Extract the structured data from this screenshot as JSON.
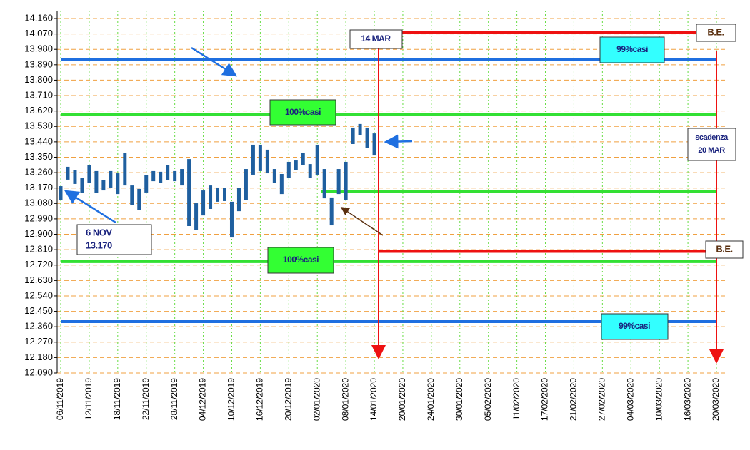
{
  "chart_data": {
    "type": "range-bar",
    "categories": [
      "06/11/2019",
      null,
      null,
      null,
      "12/11/2019",
      null,
      null,
      null,
      "18/11/2019",
      null,
      null,
      null,
      "22/11/2019",
      null,
      null,
      null,
      "28/11/2019",
      null,
      null,
      null,
      "04/12/2019",
      null,
      null,
      null,
      "10/12/2019",
      null,
      null,
      null,
      "16/12/2019",
      null,
      null,
      null,
      "20/12/2019",
      null,
      null,
      null,
      "02/01/2020",
      null,
      null,
      null,
      "08/01/2020",
      null,
      null,
      null,
      "14/01/2020",
      null,
      null,
      null,
      "20/01/2020",
      null,
      null,
      null,
      "24/01/2020",
      null,
      null,
      null,
      "30/01/2020",
      null,
      null,
      null,
      "05/02/2020",
      null,
      null,
      null,
      "11/02/2020",
      null,
      null,
      null,
      "17/02/2020",
      null,
      null,
      null,
      "21/02/2020",
      null,
      null,
      null,
      "27/02/2020",
      null,
      null,
      null,
      "04/03/2020",
      null,
      null,
      null,
      "10/03/2020",
      null,
      null,
      null,
      "16/03/2020",
      null,
      null,
      null,
      "20/03/2020"
    ],
    "high": [
      13.181,
      13.294,
      13.277,
      13.227,
      13.306,
      13.269,
      13.215,
      13.269,
      13.256,
      13.373,
      13.185,
      13.165,
      13.244,
      13.269,
      13.265,
      13.306,
      13.269,
      13.281,
      13.339,
      13.081,
      13.156,
      13.185,
      13.173,
      13.169,
      13.09,
      13.169,
      13.281,
      13.423,
      13.423,
      13.394,
      13.281,
      13.252,
      13.323,
      13.331,
      13.377,
      13.31,
      13.423,
      13.281,
      13.115,
      13.281,
      13.323,
      13.523,
      13.544,
      13.523,
      13.489,
      null,
      null,
      null,
      null,
      null,
      null,
      null,
      null,
      null,
      null,
      null,
      null,
      null,
      null,
      null,
      null,
      null,
      null,
      null,
      null,
      null,
      null,
      null,
      null,
      null,
      null,
      null,
      null,
      null,
      null,
      null,
      null,
      null,
      null,
      null,
      null,
      null,
      null,
      null,
      null,
      null,
      null,
      null,
      null,
      null,
      null,
      null,
      null
    ],
    "low": [
      13.102,
      13.219,
      13.194,
      13.14,
      13.202,
      13.14,
      13.156,
      13.173,
      13.135,
      13.185,
      13.069,
      13.04,
      13.144,
      13.21,
      13.198,
      13.215,
      13.21,
      13.185,
      12.948,
      12.923,
      13.01,
      13.048,
      13.09,
      13.094,
      12.881,
      13.035,
      13.102,
      13.248,
      13.269,
      13.256,
      13.202,
      13.135,
      13.227,
      13.273,
      13.302,
      13.231,
      13.248,
      13.11,
      12.952,
      13.135,
      13.098,
      13.427,
      13.481,
      13.402,
      13.36,
      null,
      null,
      null,
      null,
      null,
      null,
      null,
      null,
      null,
      null,
      null,
      null,
      null,
      null,
      null,
      null,
      null,
      null,
      null,
      null,
      null,
      null,
      null,
      null,
      null,
      null,
      null,
      null,
      null,
      null,
      null,
      null,
      null,
      null,
      null,
      null,
      null,
      null,
      null,
      null,
      null,
      null,
      null,
      null,
      null,
      null,
      null,
      null
    ],
    "color": "#1f5f9f",
    "ylim": [
      12.09,
      14.16
    ],
    "yticks": [
      {
        "value": 12.09,
        "label": "12.090"
      },
      {
        "value": 12.18,
        "label": "12.180"
      },
      {
        "value": 12.27,
        "label": "12.270"
      },
      {
        "value": 12.36,
        "label": "12.360"
      },
      {
        "value": 12.45,
        "label": "12.450"
      },
      {
        "value": 12.54,
        "label": "12.540"
      },
      {
        "value": 12.63,
        "label": "12.630"
      },
      {
        "value": 12.72,
        "label": "12.720"
      },
      {
        "value": 12.81,
        "label": "12.810"
      },
      {
        "value": 12.9,
        "label": "12.900"
      },
      {
        "value": 12.99,
        "label": "12.990"
      },
      {
        "value": 13.08,
        "label": "13.080"
      },
      {
        "value": 13.17,
        "label": "13.170"
      },
      {
        "value": 13.26,
        "label": "13.260"
      },
      {
        "value": 13.35,
        "label": "13.350"
      },
      {
        "value": 13.44,
        "label": "13.440"
      },
      {
        "value": 13.53,
        "label": "13.530"
      },
      {
        "value": 13.62,
        "label": "13.620"
      },
      {
        "value": 13.71,
        "label": "13.710"
      },
      {
        "value": 13.8,
        "label": "13.800"
      },
      {
        "value": 13.89,
        "label": "13.890"
      },
      {
        "value": 13.98,
        "label": "13.980"
      },
      {
        "value": 14.07,
        "label": "14.070"
      },
      {
        "value": 14.16,
        "label": "14.160"
      }
    ],
    "grid": true,
    "levels": [
      {
        "value": 13.92,
        "color": "#1f6fe0"
      },
      {
        "value": 13.6,
        "color": "#33e033"
      },
      {
        "value": 14.08,
        "color": "#ee1111"
      },
      {
        "value": 13.15,
        "color": "#33e033"
      },
      {
        "value": 12.8,
        "color": "#ee1111"
      },
      {
        "value": 12.74,
        "color": "#33e033"
      },
      {
        "value": 12.39,
        "color": "#1f6fe0"
      }
    ],
    "annotations": {
      "mar14": "14 MAR",
      "be_top": "B.E.",
      "casi99_top": "99%casi",
      "casi100_top": "100%casi",
      "scadenza": [
        "scadenza",
        "20 MAR"
      ],
      "nov6": [
        "6  NOV",
        "13.170"
      ],
      "be_bottom": "B.E.",
      "casi100_bottom": "100%casi",
      "casi99_bottom": "99%casi"
    }
  }
}
